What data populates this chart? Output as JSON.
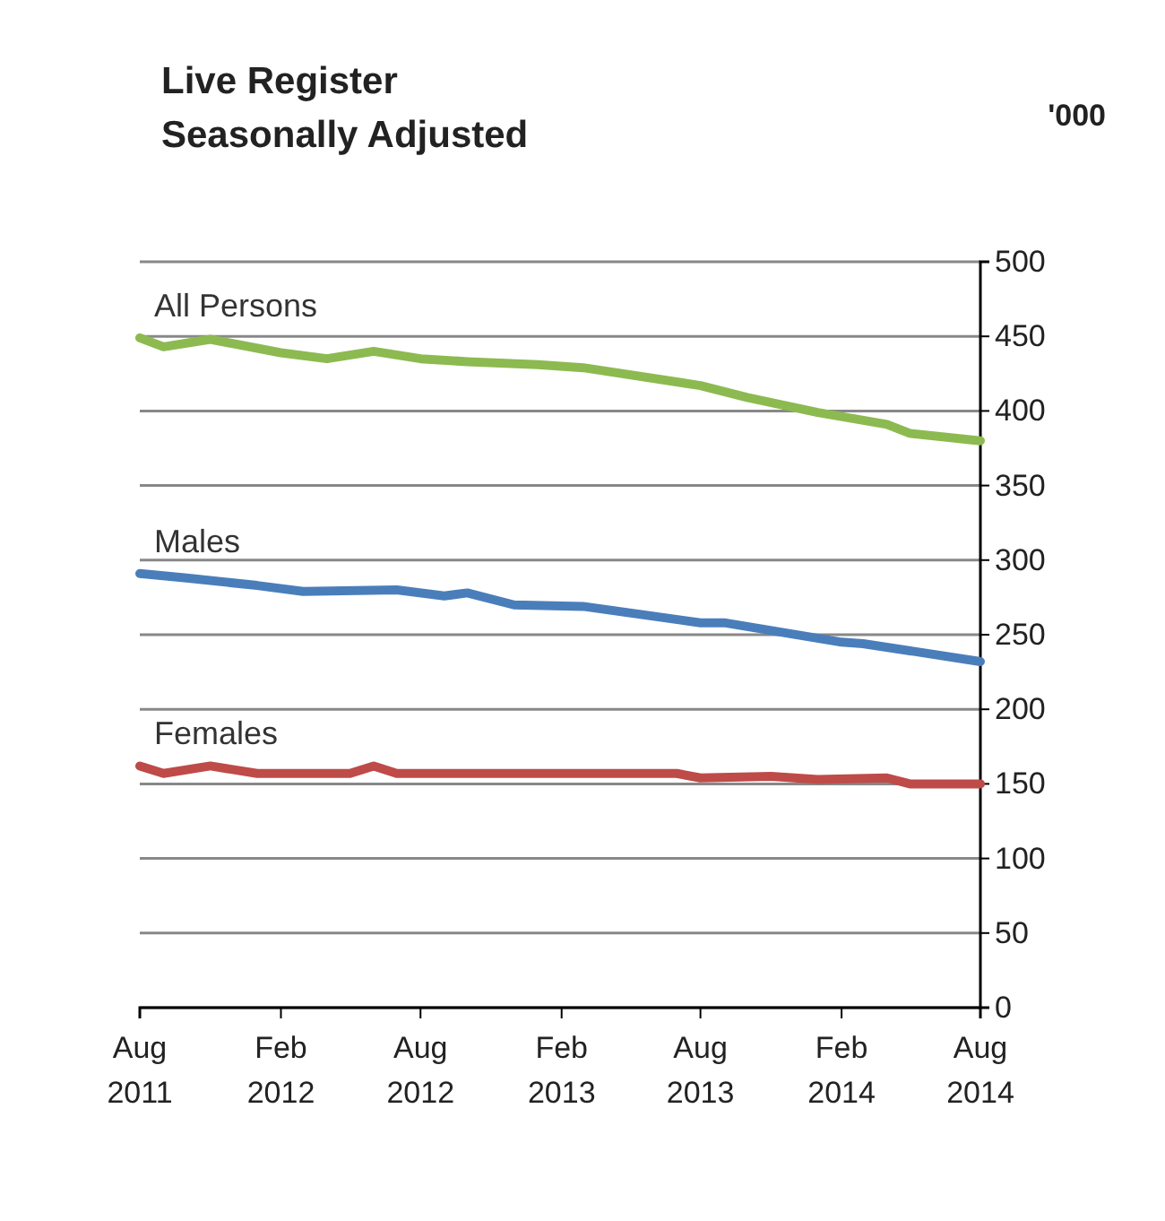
{
  "chart_data": {
    "type": "line",
    "title": "Live Register",
    "subtitle": "Seasonally Adjusted",
    "ylabel": "'000",
    "xlim": [
      "2011-08",
      "2014-08"
    ],
    "xticks": [
      {
        "value": "2011-08",
        "label": "Aug 2011"
      },
      {
        "value": "2012-02",
        "label": "Feb 2012"
      },
      {
        "value": "2012-08",
        "label": "Aug 2012"
      },
      {
        "value": "2013-02",
        "label": "Feb 2013"
      },
      {
        "value": "2013-08",
        "label": "Aug 2013"
      },
      {
        "value": "2014-02",
        "label": "Feb 2014"
      },
      {
        "value": "2014-08",
        "label": "Aug 2014"
      }
    ],
    "ylim": [
      0,
      500
    ],
    "yticks": [
      0,
      50,
      100,
      150,
      200,
      250,
      300,
      350,
      400,
      450,
      500
    ],
    "grid": "y",
    "series": [
      {
        "name": "All Persons",
        "color": "#8cba50",
        "x": [
          "2011-08",
          "2011-09",
          "2011-11",
          "2012-02",
          "2012-04",
          "2012-06",
          "2012-08",
          "2012-10",
          "2013-01",
          "2013-03",
          "2013-08",
          "2013-10",
          "2014-01",
          "2014-04",
          "2014-05",
          "2014-08"
        ],
        "values": [
          449,
          443,
          448,
          439,
          435,
          440,
          435,
          433,
          431,
          429,
          417,
          409,
          399,
          391,
          385,
          380
        ]
      },
      {
        "name": "Males",
        "color": "#4a7ebb",
        "x": [
          "2011-08",
          "2011-10",
          "2012-01",
          "2012-03",
          "2012-07",
          "2012-09",
          "2012-10",
          "2012-12",
          "2013-03",
          "2013-08",
          "2013-09",
          "2014-02",
          "2014-03",
          "2014-08"
        ],
        "values": [
          291,
          288,
          283,
          279,
          280,
          276,
          278,
          270,
          269,
          258,
          258,
          245,
          244,
          232
        ]
      },
      {
        "name": "Females",
        "color": "#be4b48",
        "x": [
          "2011-08",
          "2011-09",
          "2011-11",
          "2012-01",
          "2012-05",
          "2012-06",
          "2012-07",
          "2013-07",
          "2013-08",
          "2013-11",
          "2014-01",
          "2014-04",
          "2014-05",
          "2014-08"
        ],
        "values": [
          162,
          157,
          162,
          157,
          157,
          162,
          157,
          157,
          154,
          155,
          153,
          154,
          150,
          150
        ]
      }
    ]
  }
}
